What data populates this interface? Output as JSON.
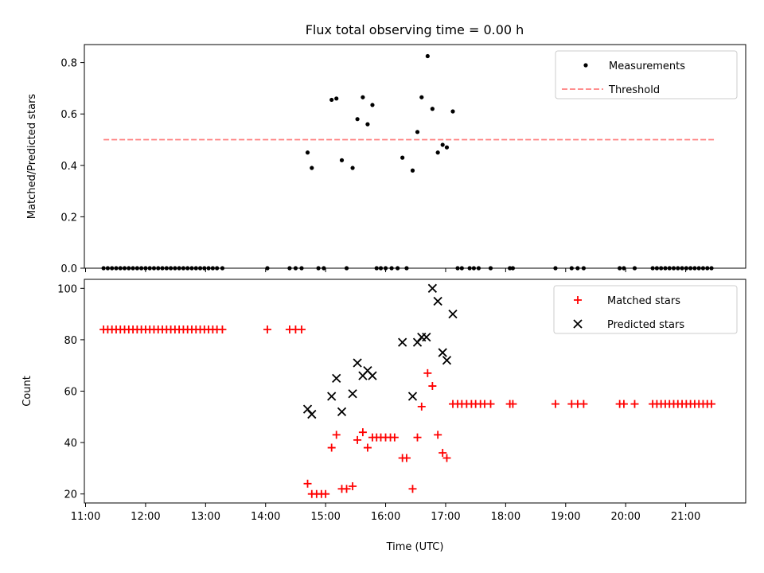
{
  "title": "Flux total observing time = 0.00 h",
  "colors": {
    "measurement": "#000000",
    "threshold": "#ff7f7f",
    "matched": "#ff0000",
    "predicted": "#000000"
  },
  "chart_data": [
    {
      "type": "scatter",
      "ylabel": "Matched/Predicted stars",
      "xlim": [
        10.98,
        22.0
      ],
      "ylim": [
        0,
        0.87
      ],
      "yticks": [
        "0.0",
        "0.2",
        "0.4",
        "0.6",
        "0.8"
      ],
      "ytick_values": [
        0,
        0.2,
        0.4,
        0.6,
        0.8
      ],
      "legend": {
        "position": "top-right",
        "entries": [
          "Measurements",
          "Threshold"
        ]
      },
      "threshold": {
        "name": "Threshold",
        "y": 0.5,
        "x": [
          11.3,
          21.47
        ]
      },
      "series": [
        {
          "name": "Measurements",
          "points": [
            [
              11.3,
              0
            ],
            [
              11.37,
              0
            ],
            [
              11.44,
              0
            ],
            [
              11.51,
              0
            ],
            [
              11.58,
              0
            ],
            [
              11.65,
              0
            ],
            [
              11.72,
              0
            ],
            [
              11.79,
              0
            ],
            [
              11.86,
              0
            ],
            [
              11.93,
              0
            ],
            [
              12.0,
              0
            ],
            [
              12.07,
              0
            ],
            [
              12.14,
              0
            ],
            [
              12.21,
              0
            ],
            [
              12.28,
              0
            ],
            [
              12.35,
              0
            ],
            [
              12.42,
              0
            ],
            [
              12.49,
              0
            ],
            [
              12.56,
              0
            ],
            [
              12.63,
              0
            ],
            [
              12.7,
              0
            ],
            [
              12.77,
              0
            ],
            [
              12.84,
              0
            ],
            [
              12.91,
              0
            ],
            [
              12.98,
              0
            ],
            [
              13.05,
              0
            ],
            [
              13.12,
              0
            ],
            [
              13.19,
              0
            ],
            [
              13.28,
              0
            ],
            [
              14.03,
              0
            ],
            [
              14.4,
              0
            ],
            [
              14.5,
              0
            ],
            [
              14.6,
              0
            ],
            [
              14.88,
              0
            ],
            [
              14.97,
              0
            ],
            [
              15.35,
              0
            ],
            [
              15.85,
              0
            ],
            [
              15.92,
              0
            ],
            [
              16.0,
              0
            ],
            [
              16.1,
              0
            ],
            [
              16.2,
              0
            ],
            [
              16.35,
              0
            ],
            [
              17.2,
              0
            ],
            [
              17.27,
              0
            ],
            [
              17.4,
              0
            ],
            [
              17.47,
              0
            ],
            [
              17.55,
              0
            ],
            [
              17.75,
              0
            ],
            [
              18.07,
              0
            ],
            [
              18.12,
              0
            ],
            [
              18.83,
              0
            ],
            [
              19.1,
              0
            ],
            [
              19.2,
              0
            ],
            [
              19.3,
              0
            ],
            [
              19.9,
              0
            ],
            [
              19.97,
              0
            ],
            [
              20.15,
              0
            ],
            [
              20.45,
              0
            ],
            [
              20.52,
              0
            ],
            [
              20.59,
              0
            ],
            [
              20.66,
              0
            ],
            [
              20.73,
              0
            ],
            [
              20.8,
              0
            ],
            [
              20.87,
              0
            ],
            [
              20.94,
              0
            ],
            [
              21.01,
              0
            ],
            [
              21.08,
              0
            ],
            [
              21.15,
              0
            ],
            [
              21.22,
              0
            ],
            [
              21.29,
              0
            ],
            [
              21.36,
              0
            ],
            [
              21.43,
              0
            ],
            [
              14.7,
              0.45
            ],
            [
              14.77,
              0.39
            ],
            [
              15.1,
              0.655
            ],
            [
              15.18,
              0.66
            ],
            [
              15.27,
              0.42
            ],
            [
              15.45,
              0.39
            ],
            [
              15.53,
              0.58
            ],
            [
              15.62,
              0.665
            ],
            [
              15.7,
              0.56
            ],
            [
              15.78,
              0.635
            ],
            [
              16.28,
              0.43
            ],
            [
              16.45,
              0.38
            ],
            [
              16.53,
              0.53
            ],
            [
              16.6,
              0.665
            ],
            [
              16.7,
              0.825
            ],
            [
              16.78,
              0.62
            ],
            [
              16.87,
              0.45
            ],
            [
              16.95,
              0.48
            ],
            [
              17.02,
              0.47
            ],
            [
              17.12,
              0.61
            ]
          ]
        }
      ]
    },
    {
      "type": "scatter",
      "xlabel": "Time (UTC)",
      "ylabel": "Count",
      "xlim": [
        10.98,
        22.0
      ],
      "ylim": [
        16.5,
        103.5
      ],
      "xticks": [
        "11:00",
        "12:00",
        "13:00",
        "14:00",
        "15:00",
        "16:00",
        "17:00",
        "18:00",
        "19:00",
        "20:00",
        "21:00"
      ],
      "xtick_values": [
        11,
        12,
        13,
        14,
        15,
        16,
        17,
        18,
        19,
        20,
        21
      ],
      "yticks": [
        "20",
        "40",
        "60",
        "80",
        "100"
      ],
      "ytick_values": [
        20,
        40,
        60,
        80,
        100
      ],
      "legend": {
        "position": "top-right",
        "entries": [
          "Matched stars",
          "Predicted stars"
        ]
      },
      "series": [
        {
          "name": "Matched stars",
          "marker": "plus",
          "points": [
            [
              11.3,
              84
            ],
            [
              11.37,
              84
            ],
            [
              11.44,
              84
            ],
            [
              11.51,
              84
            ],
            [
              11.58,
              84
            ],
            [
              11.65,
              84
            ],
            [
              11.72,
              84
            ],
            [
              11.79,
              84
            ],
            [
              11.86,
              84
            ],
            [
              11.93,
              84
            ],
            [
              12.0,
              84
            ],
            [
              12.07,
              84
            ],
            [
              12.14,
              84
            ],
            [
              12.21,
              84
            ],
            [
              12.28,
              84
            ],
            [
              12.35,
              84
            ],
            [
              12.42,
              84
            ],
            [
              12.49,
              84
            ],
            [
              12.56,
              84
            ],
            [
              12.63,
              84
            ],
            [
              12.7,
              84
            ],
            [
              12.77,
              84
            ],
            [
              12.84,
              84
            ],
            [
              12.91,
              84
            ],
            [
              12.98,
              84
            ],
            [
              13.05,
              84
            ],
            [
              13.12,
              84
            ],
            [
              13.19,
              84
            ],
            [
              13.28,
              84
            ],
            [
              14.03,
              84
            ],
            [
              14.4,
              84
            ],
            [
              14.5,
              84
            ],
            [
              14.6,
              84
            ],
            [
              14.7,
              24
            ],
            [
              14.77,
              20
            ],
            [
              14.85,
              20
            ],
            [
              14.93,
              20
            ],
            [
              15.0,
              20
            ],
            [
              15.1,
              38
            ],
            [
              15.18,
              43
            ],
            [
              15.27,
              22
            ],
            [
              15.35,
              22
            ],
            [
              15.45,
              23
            ],
            [
              15.53,
              41
            ],
            [
              15.62,
              44
            ],
            [
              15.7,
              38
            ],
            [
              15.78,
              42
            ],
            [
              15.85,
              42
            ],
            [
              15.92,
              42
            ],
            [
              16.0,
              42
            ],
            [
              16.08,
              42
            ],
            [
              16.15,
              42
            ],
            [
              16.28,
              34
            ],
            [
              16.35,
              34
            ],
            [
              16.45,
              22
            ],
            [
              16.53,
              42
            ],
            [
              16.6,
              54
            ],
            [
              16.7,
              67
            ],
            [
              16.78,
              62
            ],
            [
              16.87,
              43
            ],
            [
              16.95,
              36
            ],
            [
              17.02,
              34
            ],
            [
              17.12,
              55
            ],
            [
              17.2,
              55
            ],
            [
              17.27,
              55
            ],
            [
              17.35,
              55
            ],
            [
              17.43,
              55
            ],
            [
              17.5,
              55
            ],
            [
              17.58,
              55
            ],
            [
              17.65,
              55
            ],
            [
              17.75,
              55
            ],
            [
              18.07,
              55
            ],
            [
              18.12,
              55
            ],
            [
              18.83,
              55
            ],
            [
              19.1,
              55
            ],
            [
              19.2,
              55
            ],
            [
              19.3,
              55
            ],
            [
              19.9,
              55
            ],
            [
              19.97,
              55
            ],
            [
              20.15,
              55
            ],
            [
              20.45,
              55
            ],
            [
              20.52,
              55
            ],
            [
              20.59,
              55
            ],
            [
              20.66,
              55
            ],
            [
              20.73,
              55
            ],
            [
              20.8,
              55
            ],
            [
              20.87,
              55
            ],
            [
              20.94,
              55
            ],
            [
              21.01,
              55
            ],
            [
              21.08,
              55
            ],
            [
              21.15,
              55
            ],
            [
              21.22,
              55
            ],
            [
              21.29,
              55
            ],
            [
              21.36,
              55
            ],
            [
              21.43,
              55
            ]
          ]
        },
        {
          "name": "Predicted stars",
          "marker": "x",
          "points": [
            [
              14.7,
              53
            ],
            [
              14.77,
              51
            ],
            [
              15.1,
              58
            ],
            [
              15.18,
              65
            ],
            [
              15.27,
              52
            ],
            [
              15.45,
              59
            ],
            [
              15.53,
              71
            ],
            [
              15.62,
              66
            ],
            [
              15.7,
              68
            ],
            [
              15.78,
              66
            ],
            [
              16.28,
              79
            ],
            [
              16.45,
              58
            ],
            [
              16.53,
              79
            ],
            [
              16.6,
              81
            ],
            [
              16.68,
              81
            ],
            [
              16.78,
              100
            ],
            [
              16.87,
              95
            ],
            [
              16.95,
              75
            ],
            [
              17.02,
              72
            ],
            [
              17.12,
              90
            ]
          ]
        }
      ]
    }
  ]
}
